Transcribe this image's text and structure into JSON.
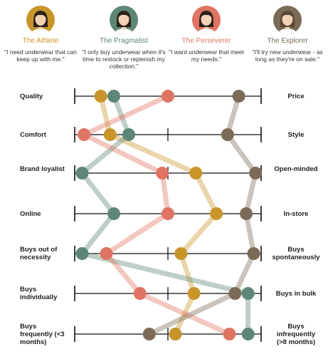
{
  "personas": [
    {
      "name": "The Athlete",
      "quote": "\"I need underwear that can keep up with me.\"",
      "color": "#c9952a",
      "skin": "#f1d2b4",
      "hair": "#2b211b"
    },
    {
      "name": "The Pragmatist",
      "quote": "\"I only buy underwear when it's time to restock or replenish my collection.\"",
      "color": "#5e8676",
      "skin": "#f1d2b4",
      "hair": "#2b211b"
    },
    {
      "name": "The Perseverer",
      "quote": "\"I want underwear that meet my needs.\"",
      "color": "#e07463",
      "skin": "#f1d2b4",
      "hair": "#2b211b"
    },
    {
      "name": "The Explorer",
      "quote": "\"I'll try new underwear - as long as they're on sale.\"",
      "color": "#7a6b58",
      "skin": "#f1d2b4",
      "hair": "#5a4633"
    }
  ],
  "scales": [
    {
      "left": "Quality",
      "right": "Price"
    },
    {
      "left": "Comfort",
      "right": "Style"
    },
    {
      "left": "Brand loyalist",
      "right": "Open-minded"
    },
    {
      "left": "Online",
      "right": "In-store"
    },
    {
      "left": "Buys out of necessity",
      "right": "Buys spontaneously"
    },
    {
      "left": "Buys individually",
      "right": "Buys in bulk"
    },
    {
      "left": "Buys frequently (<3 months)",
      "right": "Buys infrequently (>8 months)"
    }
  ],
  "chart_data": {
    "type": "diagram",
    "scale_range": [
      0,
      1
    ],
    "series": [
      {
        "name": "The Athlete",
        "color": "#c9952a",
        "values": [
          0.14,
          0.19,
          0.65,
          0.76,
          0.57,
          0.64,
          0.54
        ]
      },
      {
        "name": "The Pragmatist",
        "color": "#5e8676",
        "values": [
          0.21,
          0.29,
          0.04,
          0.21,
          0.04,
          0.93,
          0.93
        ]
      },
      {
        "name": "The Perseverer",
        "color": "#e07463",
        "values": [
          0.5,
          0.05,
          0.47,
          0.5,
          0.17,
          0.35,
          0.83
        ]
      },
      {
        "name": "The Explorer",
        "color": "#7a6b58",
        "values": [
          0.88,
          0.82,
          0.97,
          0.92,
          0.96,
          0.86,
          0.4
        ]
      }
    ]
  }
}
